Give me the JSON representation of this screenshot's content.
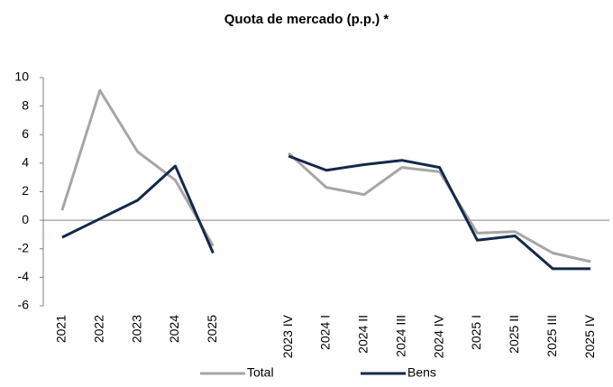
{
  "chart_data": {
    "type": "line",
    "title": "Quota de mercado (p.p.) *",
    "categories": [
      "2021",
      "2022",
      "2023",
      "2024",
      "2025",
      null,
      "2023 IV",
      "2024 I",
      "2024 II",
      "2024 III",
      "2024 IV",
      "2025 I",
      "2025 II",
      "2025 III",
      "2025 IV"
    ],
    "series": [
      {
        "name": "Total",
        "color": "#a6a6a6",
        "values": [
          0.7,
          9.1,
          4.8,
          2.8,
          -1.8,
          null,
          4.7,
          2.3,
          1.8,
          3.7,
          3.4,
          -0.9,
          -0.8,
          -2.3,
          -2.9
        ]
      },
      {
        "name": "Bens",
        "color": "#14284b",
        "values": [
          -1.2,
          0.1,
          1.4,
          3.8,
          -2.3,
          null,
          4.5,
          3.5,
          3.9,
          4.2,
          3.7,
          -1.4,
          -1.1,
          -3.4,
          -3.4
        ]
      }
    ],
    "ylim": [
      -6,
      10
    ],
    "yticks": [
      -6,
      -4,
      -2,
      0,
      2,
      4,
      6,
      8,
      10
    ]
  }
}
